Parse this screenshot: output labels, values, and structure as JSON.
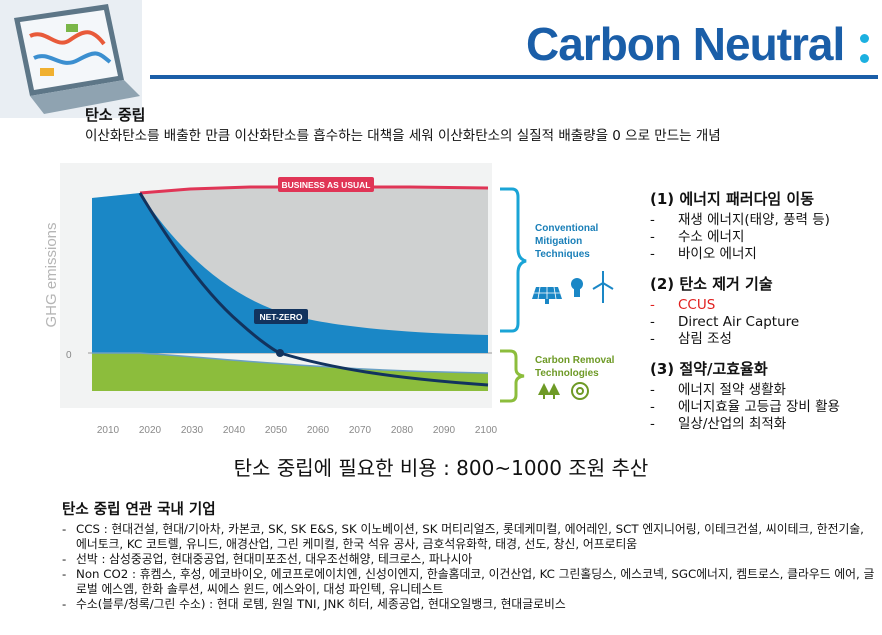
{
  "logo": {
    "text": "Carbon Neutral"
  },
  "definition": {
    "title": "탄소 중립",
    "text": "이산화탄소를 배출한 만큼 이산화탄소를 흡수하는 대책을 세워 이산화탄소의 실질적 배출량을 0 으로 만드는 개념"
  },
  "chart_data": {
    "type": "area",
    "ylabel": "GHG emissions",
    "y_tick": "0",
    "x": [
      "2010",
      "2020",
      "2030",
      "2040",
      "2050",
      "2060",
      "2070",
      "2080",
      "2090",
      "2100"
    ],
    "labels": {
      "business_as_usual": "BUSINESS AS USUAL",
      "net_zero": "NET-ZERO",
      "conventional": [
        "Conventional",
        "Mitigation",
        "Techniques"
      ],
      "removal": [
        "Carbon Removal",
        "Technologies"
      ]
    },
    "colors": {
      "business_as_usual": "#e03556",
      "mitigation": "#cfd1d1",
      "emissions": "#1a87c6",
      "removal": "#8cbd3c",
      "net_zero_line": "#12335e",
      "bracket_conventional": "#1aa4d6",
      "bracket_removal": "#8cbd3c"
    }
  },
  "strategies": [
    {
      "title": "(1) 에너지 패러다임 이동",
      "items": [
        {
          "text": "재생 에너지(태양, 풍력 등)",
          "highlight": false
        },
        {
          "text": "수소 에너지",
          "highlight": false
        },
        {
          "text": "바이오 에너지",
          "highlight": false
        }
      ]
    },
    {
      "title": "(2) 탄소 제거 기술",
      "items": [
        {
          "text": "CCUS",
          "highlight": true
        },
        {
          "text": "Direct Air Capture",
          "highlight": false
        },
        {
          "text": "삼림 조성",
          "highlight": false
        }
      ]
    },
    {
      "title": "(3) 절약/고효율화",
      "items": [
        {
          "text": "에너지 절약 생활화",
          "highlight": false
        },
        {
          "text": "에너지효율 고등급 장비 활용",
          "highlight": false
        },
        {
          "text": "일상/산업의 최적화",
          "highlight": false
        }
      ]
    }
  ],
  "cost": "탄소 중립에 필요한 비용 : 800~1000 조원 추산",
  "companies": {
    "title": "탄소 중립 연관 국내 기업",
    "items": [
      "CCS : 현대건설, 현대/기아차, 카본코, SK, SK E&S, SK 이노베이션, SK 머티리얼즈, 롯데케미컬, 에어레인, SCT 엔지니어링, 이테크건설, 씨이테크, 한전기술, 에너토크, KC 코트렐, 유니드, 애경산업, 그린 케미컬, 한국 석유 공사, 금호석유화학, 태경, 선도, 창신, 어프로티움",
      "선박 : 삼성중공업, 현대중공업, 현대미포조선, 대우조선해양, 테크로스, 파나시아",
      "Non CO2 : 휴켐스, 후성, 에코바이오, 에코프로에이치엔, 신성이엔지, 한솔홈데코, 이건산업, KC 그린홀딩스, 에스코넥, SGC에너지, 켐트로스, 클라우드 에어, 글로벌 에스엠, 한화 솔루션, 씨에스 윈드, 에스와이, 대성 파인텍, 유니테스트",
      "수소(블루/청록/그린 수소) : 현대 로템, 원일 TNI, JNK 히터, 세종공업, 현대오일뱅크, 현대글로비스"
    ]
  }
}
